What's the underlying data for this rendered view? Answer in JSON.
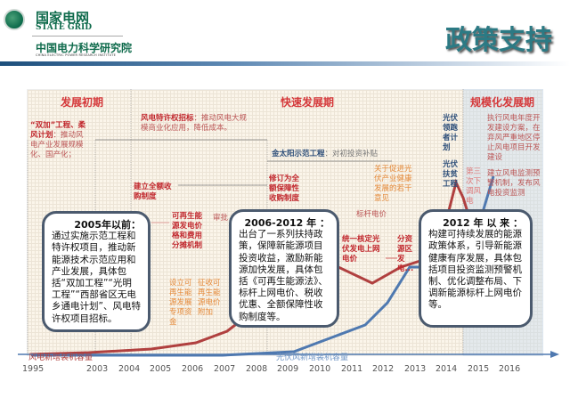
{
  "header": {
    "brand_cn": "国家电网",
    "brand_en": "STATE GRID",
    "institute_cn": "中国电力科学研究院",
    "institute_en": "CHINA ELECTRIC POWER RESEARCH INSTITUTE",
    "title": "政策支持"
  },
  "phases": [
    "发展初期",
    "快速发展期",
    "规模化发展期"
  ],
  "annotations": {
    "a1_bold": "“双加”工程、柔风计划",
    "a1": "：推动风电产业发展规模化、国产化；",
    "a2_bold": "风电特许权招标",
    "a2": "：推动风电大规模商业化应用，降低成本。",
    "a3_bold": "金太阳示范工程",
    "a3": "：对初投资补贴",
    "a4": "建立全额收购制度",
    "a5": "修订为全额保障性收购制度",
    "a6": "可再生能源发电价格和费用分摊机制",
    "a7": "设立可再生能源发展专项资金",
    "a8": "征收可再生能源电价附加",
    "a9": "关于促进光伏产业健康发展的若干意见",
    "a10": "标杆电价",
    "a11": "统一核定光伏发电上网电价",
    "a12": "分资源区发电...",
    "a13": "光伏领跑者计划",
    "a14": "光伏扶贫工程",
    "a15": "执行风电年度开发建设方案，在弃风严重地区停止风电项目开发建设",
    "a16": "建立风电监测预警机制，发布风电投资监测",
    "a17": "审批",
    "a18": "第三次下调风电"
  },
  "callouts": [
    {
      "heading": "2005年以前：",
      "body": "通过实施示范工程和特许权项目，推动新能源技术示范应用和产业发展，具体包括“双加工程”“光明工程”“西部省区无电乡通电计划”、风电特许权项目招标。"
    },
    {
      "heading": "2006-2012 年 ：",
      "body": "出台了一系列扶持政策，保障新能源项目投资收益，激励新能源加快发展，具体包括《可再生能源法》、标杆上网电价、税收优惠、全额保障性收购制度等。"
    },
    {
      "heading": "2012 年 以 来 ：",
      "body": "构建可持续发展的能源政策体系，引导新能源健康有序发展，具体包括项目投资监测预警机制、优化调整布局、下调新能源标杆上网电价等。"
    }
  ],
  "series_labels": {
    "wind": "风电新增装机容量",
    "pv": "光伏风新增装机容量"
  },
  "years": [
    "1995",
    "2003",
    "2004",
    "2005",
    "2006",
    "2007",
    "2008",
    "2009",
    "2010",
    "2011",
    "2012",
    "2013",
    "2014",
    "2015",
    "2016"
  ],
  "colors": {
    "wind": "#b0403f",
    "pv": "#4f79b0",
    "accent": "#d5383a",
    "title": "#2c7a84"
  }
}
